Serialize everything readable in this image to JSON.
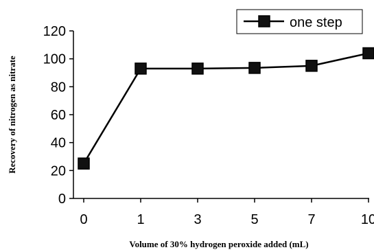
{
  "chart_data": {
    "type": "line",
    "title": "",
    "xlabel": "Volume of 30% hydrogen peroxide added (mL)",
    "ylabel": "Recovery of nitrogen as nitrate",
    "categories": [
      "0",
      "1",
      "3",
      "5",
      "7",
      "10"
    ],
    "ylim": [
      0,
      120
    ],
    "yticks": [
      "0",
      "20",
      "40",
      "60",
      "80",
      "100",
      "120"
    ],
    "series": [
      {
        "name": "one step",
        "values": [
          25,
          93,
          93,
          93.5,
          95,
          104
        ],
        "color": "#000000",
        "marker": "square"
      }
    ],
    "grid": false,
    "legend_position": "top-right"
  }
}
